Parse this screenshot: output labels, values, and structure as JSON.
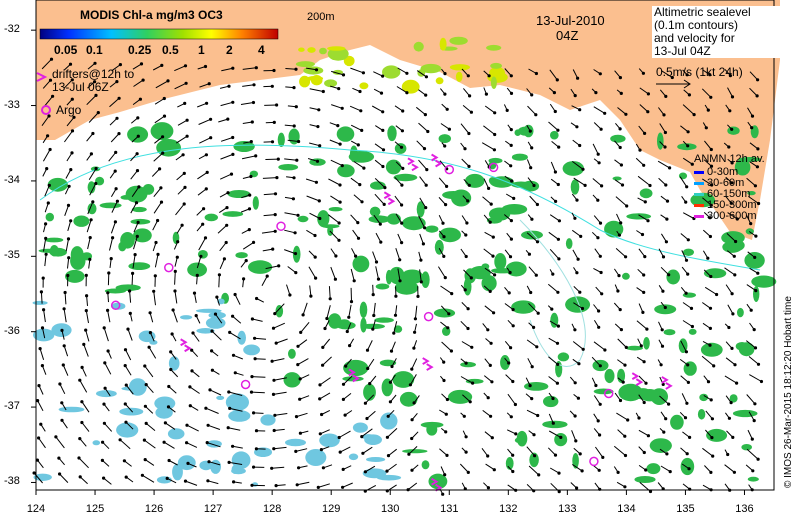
{
  "chart_data": {
    "type": "map",
    "title": "MODIS Chl-a mg/m3 OC3",
    "date": "13-Jul-2010",
    "time": "04Z",
    "contour_label": "200m",
    "x_ticks": [
      "124",
      "125",
      "126",
      "127",
      "128",
      "129",
      "130",
      "131",
      "132",
      "133",
      "134",
      "135",
      "136"
    ],
    "y_ticks": [
      "-32",
      "-33",
      "-34",
      "-35",
      "-36",
      "-37",
      "-38"
    ],
    "xlim": [
      124,
      136.5
    ],
    "ylim": [
      -38.1,
      -31.6
    ],
    "colorbar_ticks": [
      "0.05",
      "0.1",
      "0.25",
      "0.5",
      "1",
      "2",
      "4"
    ],
    "colors": {
      "land": "#fbbf8f",
      "ocean": "#ffffff",
      "low_chl": "#6fc7e0",
      "mid_chl": "#2db84a",
      "high_chl": "#d7e600",
      "drifter": "#e020e0",
      "contour": "#40e0e0"
    },
    "altimetry_note": [
      "Altimetric sealevel",
      "(0.1m contours)",
      "and velocity for",
      "13-Jul 04Z",
      "0.5m/s (1kt 24h)"
    ],
    "drifters_label": [
      "drifters@12h to",
      "13-Jul 06Z"
    ],
    "argo_label": "Argo",
    "anmn_title": "ANMN 12h av.",
    "anmn_legend": [
      {
        "label": "0-30m",
        "color": "#0000ff"
      },
      {
        "label": "30-60m",
        "color": "#00a0ff"
      },
      {
        "label": "60-150m",
        "color": "#30d0c0"
      },
      {
        "label": "150-300m",
        "color": "#ff3000"
      },
      {
        "label": "300-600m",
        "color": "#e020e0"
      }
    ],
    "credit": "© IMOS 26-Mar-2015 18:12:20 Hobart time",
    "argo_floats": [
      {
        "lon": 126.25,
        "lat": -35.15
      },
      {
        "lon": 125.35,
        "lat": -35.65
      },
      {
        "lon": 127.55,
        "lat": -36.7
      },
      {
        "lon": 128.15,
        "lat": -34.6
      },
      {
        "lon": 130.65,
        "lat": -35.8
      },
      {
        "lon": 131.0,
        "lat": -33.85
      },
      {
        "lon": 131.75,
        "lat": -33.82
      },
      {
        "lon": 133.45,
        "lat": -37.72
      },
      {
        "lon": 133.7,
        "lat": -36.82
      }
    ],
    "drifter_tracks": [
      {
        "lon": 126.45,
        "lat": -36.1
      },
      {
        "lon": 129.3,
        "lat": -36.5
      },
      {
        "lon": 130.55,
        "lat": -36.35
      },
      {
        "lon": 129.9,
        "lat": -34.15
      },
      {
        "lon": 130.3,
        "lat": -33.7
      },
      {
        "lon": 130.7,
        "lat": -33.65
      },
      {
        "lon": 134.1,
        "lat": -36.55
      },
      {
        "lon": 134.6,
        "lat": -36.6
      },
      {
        "lon": 130.7,
        "lat": -37.95
      }
    ]
  }
}
